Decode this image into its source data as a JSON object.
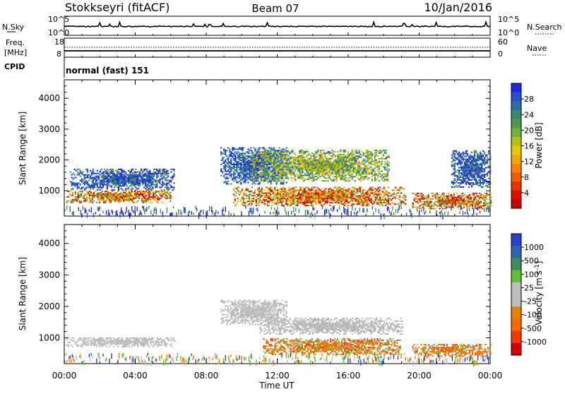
{
  "header": {
    "station": "Stokkseyri (fitACF)",
    "beam": "Beam 07",
    "date": "10/Jan/2016"
  },
  "noise_panel": {
    "left_label": "N.Sky",
    "left_ticks": [
      "10^5",
      "10^0"
    ],
    "right_label": "N.Search",
    "right_ticks": [
      "10^5",
      "10^0"
    ]
  },
  "freq_panel": {
    "left_label_line1": "Freq.",
    "left_label_line2": "[MHz]",
    "left_ticks": [
      "18",
      "8"
    ],
    "right_label": "Nave",
    "right_ticks": [
      "60",
      "0"
    ]
  },
  "cpid_panel": {
    "label": "CPID",
    "value": "normal (fast) 151"
  },
  "x_axis": {
    "title": "Time UT",
    "ticks": [
      "00:00",
      "04:00",
      "08:00",
      "12:00",
      "16:00",
      "20:00",
      "00:00"
    ]
  },
  "chart_data": [
    {
      "type": "heatmap",
      "name": "power",
      "ylabel": "Slant Range [km]",
      "yticks": [
        1000,
        2000,
        3000,
        4000
      ],
      "ylim": [
        180,
        4600
      ],
      "xlim_hours": [
        0,
        24
      ],
      "colorbar": {
        "label": "Power [dB]",
        "ticks": [
          4,
          8,
          12,
          16,
          20,
          24,
          28
        ],
        "colors": [
          "#1f27e6",
          "#2f4fc7",
          "#2b6fa0",
          "#3a8a6c",
          "#4e9a4a",
          "#6fb040",
          "#b8c400",
          "#e6c800",
          "#f0a800",
          "#ff7f00",
          "#f25a00",
          "#e83000",
          "#d81000",
          "#c80000"
        ]
      },
      "regions": [
        {
          "t": [
            0.1,
            6.0
          ],
          "r": [
            600,
            1000
          ],
          "level": "high"
        },
        {
          "t": [
            0.3,
            6.2
          ],
          "r": [
            1000,
            1700
          ],
          "level": "low"
        },
        {
          "t": [
            8.8,
            12.5
          ],
          "r": [
            1200,
            2400
          ],
          "level": "low"
        },
        {
          "t": [
            9.5,
            19.2
          ],
          "r": [
            500,
            1100
          ],
          "level": "high"
        },
        {
          "t": [
            10.5,
            18.3
          ],
          "r": [
            1300,
            2300
          ],
          "level": "mid"
        },
        {
          "t": [
            19.6,
            24.0
          ],
          "r": [
            400,
            900
          ],
          "level": "high"
        },
        {
          "t": [
            21.8,
            24.0
          ],
          "r": [
            1100,
            2300
          ],
          "level": "low"
        }
      ]
    },
    {
      "type": "heatmap",
      "name": "velocity",
      "ylabel": "Slant Range [km]",
      "yticks": [
        1000,
        2000,
        3000,
        4000
      ],
      "ylim": [
        180,
        4600
      ],
      "xlim_hours": [
        0,
        24
      ],
      "colorbar": {
        "label": "Velocity [m s^-1]",
        "ticks": [
          1000,
          500,
          100,
          25,
          -25,
          -100,
          -500,
          -1000
        ],
        "colors": [
          "#2a3fd0",
          "#2f66a8",
          "#3e8e5a",
          "#5fbf33",
          "#bdbdbd",
          "#bdbdbd",
          "#e88000",
          "#ff6a00",
          "#f03a00",
          "#d60000"
        ]
      },
      "regions": [
        {
          "t": [
            0.1,
            6.2
          ],
          "r": [
            700,
            1000
          ],
          "level": "ground"
        },
        {
          "t": [
            8.8,
            12.5
          ],
          "r": [
            1400,
            2200
          ],
          "level": "ground"
        },
        {
          "t": [
            11.0,
            19.0
          ],
          "r": [
            1100,
            1600
          ],
          "level": "ground"
        },
        {
          "t": [
            11.2,
            18.9
          ],
          "r": [
            450,
            950
          ],
          "level": "negative"
        },
        {
          "t": [
            19.6,
            24.0
          ],
          "r": [
            400,
            800
          ],
          "level": "negative"
        }
      ]
    }
  ]
}
